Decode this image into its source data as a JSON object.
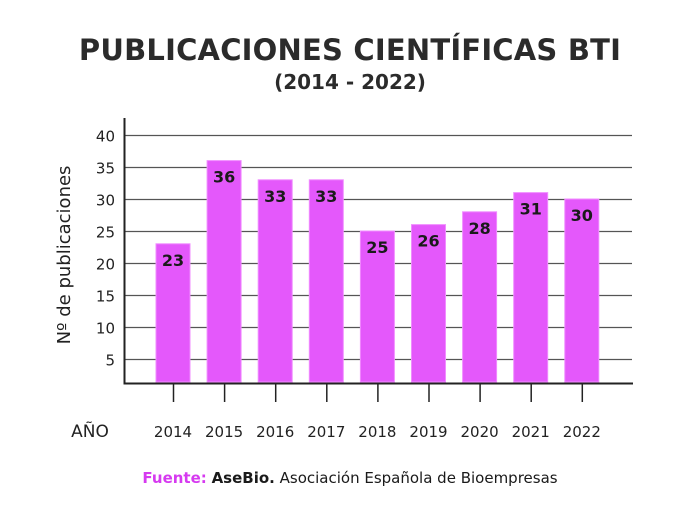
{
  "chart_data": {
    "type": "bar",
    "title": "PUBLICACIONES CIENTÍFICAS BTI",
    "subtitle": "(2014 - 2022)",
    "xlabel": "AÑO",
    "ylabel": "Nº de publicaciones",
    "categories": [
      "2014",
      "2015",
      "2016",
      "2017",
      "2018",
      "2019",
      "2020",
      "2021",
      "2022"
    ],
    "values": [
      23,
      36,
      33,
      33,
      25,
      26,
      28,
      31,
      30
    ],
    "data_labels": [
      "23",
      "36",
      "33",
      "33",
      "25",
      "26",
      "28",
      "31",
      "30"
    ],
    "yticks": [
      5,
      10,
      15,
      20,
      25,
      30,
      35,
      40
    ],
    "ytick_labels": [
      "5",
      "10",
      "15",
      "20",
      "25",
      "30",
      "35",
      "40"
    ],
    "ylim": [
      0,
      40
    ],
    "grid": true,
    "legend": "none",
    "colors": {
      "bar": "#e458fb",
      "bar_border": "#f08cff",
      "grid": "#555555",
      "axis": "#222222",
      "text": "#222222"
    }
  },
  "source": {
    "label": "Fuente:",
    "org": "AseBio.",
    "text": "Asociación Española de Bioempresas",
    "label_color": "#d63af0"
  }
}
